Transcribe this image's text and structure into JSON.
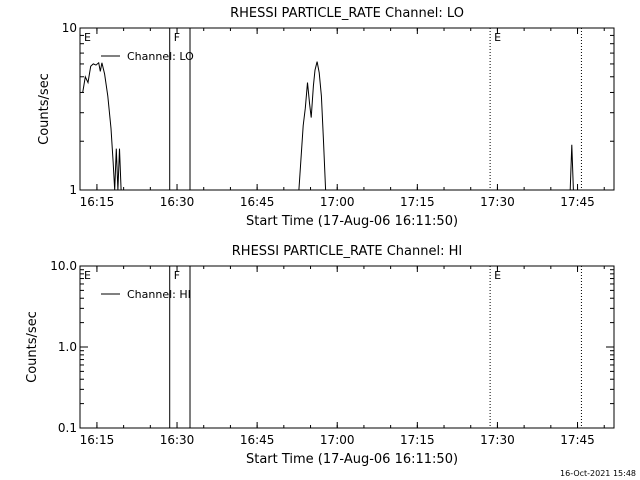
{
  "footer": {
    "timestamp": "16-Oct-2021 15:48"
  },
  "chart_data": [
    {
      "type": "line",
      "title": "RHESSI PARTICLE_RATE Channel: LO",
      "xlabel": "Start Time (17-Aug-06 16:11:50)",
      "ylabel": "Counts/sec",
      "y_scale": "log",
      "ylim": [
        1,
        10
      ],
      "xlim_minutes": [
        0,
        100
      ],
      "x_ticks": [
        "16:15",
        "16:30",
        "16:45",
        "17:00",
        "17:15",
        "17:30",
        "17:45"
      ],
      "x_tick_minutes": [
        3.17,
        18.17,
        33.17,
        48.17,
        63.17,
        78.17,
        93.17
      ],
      "y_ticks": [
        "1",
        "10"
      ],
      "y_tick_values": [
        1,
        10
      ],
      "legend": {
        "label": "Channel: LO",
        "placement": "top-left"
      },
      "markers": [
        {
          "label": "E",
          "minute": 0,
          "style": "none"
        },
        {
          "label": "F",
          "minute": 16.8,
          "style": "solid"
        },
        {
          "label": "",
          "minute": 20.6,
          "style": "solid"
        },
        {
          "label": "E",
          "minute": 76.8,
          "style": "dotted"
        },
        {
          "label": "",
          "minute": 93.9,
          "style": "dotted"
        }
      ],
      "series": [
        {
          "name": "Channel: LO",
          "segments": [
            [
              [
                0.5,
                4.0
              ],
              [
                1.0,
                5.0
              ],
              [
                1.5,
                4.6
              ],
              [
                2.0,
                5.8
              ],
              [
                2.5,
                6.0
              ],
              [
                3.0,
                5.9
              ],
              [
                3.5,
                6.1
              ],
              [
                3.8,
                5.4
              ],
              [
                4.1,
                6.1
              ],
              [
                4.6,
                5.2
              ],
              [
                5.2,
                3.8
              ],
              [
                5.8,
                2.4
              ],
              [
                6.2,
                1.5
              ],
              [
                6.5,
                1.0
              ],
              [
                6.8,
                1.8
              ],
              [
                7.1,
                1.0
              ],
              [
                7.4,
                1.8
              ],
              [
                7.7,
                1.0
              ]
            ],
            [
              [
                41.0,
                1.0
              ],
              [
                41.8,
                2.5
              ],
              [
                42.2,
                3.2
              ],
              [
                42.6,
                4.6
              ],
              [
                43.0,
                3.4
              ],
              [
                43.3,
                2.8
              ],
              [
                43.7,
                4.4
              ],
              [
                44.0,
                5.5
              ],
              [
                44.4,
                6.2
              ],
              [
                44.8,
                5.3
              ],
              [
                45.2,
                3.8
              ],
              [
                45.6,
                2.0
              ],
              [
                46.0,
                1.0
              ]
            ],
            [
              [
                91.8,
                1.0
              ],
              [
                92.1,
                1.9
              ],
              [
                92.4,
                1.0
              ]
            ]
          ]
        }
      ]
    },
    {
      "type": "line",
      "title": "RHESSI PARTICLE_RATE Channel: HI",
      "xlabel": "Start Time (17-Aug-06 16:11:50)",
      "ylabel": "Counts/sec",
      "y_scale": "log",
      "ylim": [
        0.1,
        10
      ],
      "xlim_minutes": [
        0,
        100
      ],
      "x_ticks": [
        "16:15",
        "16:30",
        "16:45",
        "17:00",
        "17:15",
        "17:30",
        "17:45"
      ],
      "x_tick_minutes": [
        3.17,
        18.17,
        33.17,
        48.17,
        63.17,
        78.17,
        93.17
      ],
      "y_ticks": [
        "0.1",
        "1.0",
        "10.0"
      ],
      "y_tick_values": [
        0.1,
        1,
        10
      ],
      "legend": {
        "label": "Channel: HI",
        "placement": "top-left"
      },
      "markers": [
        {
          "label": "E",
          "minute": 0,
          "style": "none"
        },
        {
          "label": "F",
          "minute": 16.8,
          "style": "solid"
        },
        {
          "label": "",
          "minute": 20.6,
          "style": "solid"
        },
        {
          "label": "E",
          "minute": 76.8,
          "style": "dotted"
        },
        {
          "label": "",
          "minute": 93.9,
          "style": "dotted"
        }
      ],
      "series": [
        {
          "name": "Channel: HI",
          "segments": []
        }
      ]
    }
  ]
}
